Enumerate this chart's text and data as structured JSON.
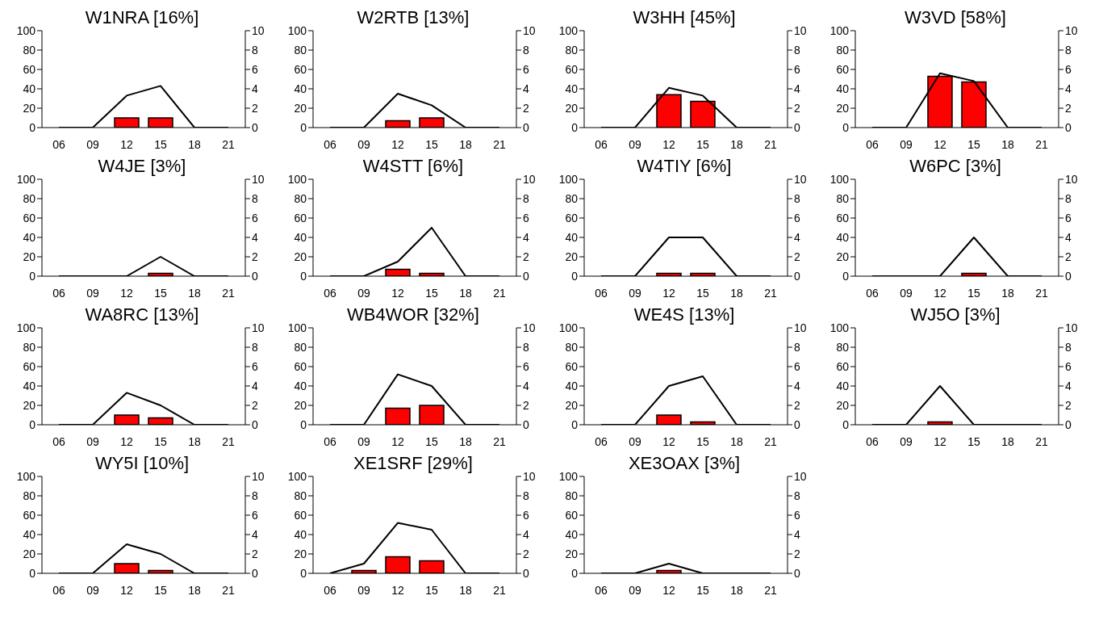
{
  "chart_data": [
    {
      "type": "bar",
      "title": "W1NRA [16%]",
      "categories": [
        "06",
        "09",
        "12",
        "15",
        "18",
        "21"
      ],
      "ylim": [
        0,
        100
      ],
      "yticks": [
        0,
        20,
        40,
        60,
        80,
        100
      ],
      "y2lim": [
        0,
        10
      ],
      "y2ticks": [
        0,
        2,
        4,
        6,
        8,
        10
      ],
      "series": [
        {
          "color": "#ff0000",
          "values": [
            0,
            0,
            10,
            10,
            0,
            0
          ]
        },
        {
          "type": "line",
          "axis": "y2",
          "color": "#000000",
          "values": [
            0,
            0,
            3.3,
            4.3,
            0,
            0
          ]
        }
      ]
    },
    {
      "type": "bar",
      "title": "W2RTB [13%]",
      "categories": [
        "06",
        "09",
        "12",
        "15",
        "18",
        "21"
      ],
      "ylim": [
        0,
        100
      ],
      "yticks": [
        0,
        20,
        40,
        60,
        80,
        100
      ],
      "y2lim": [
        0,
        10
      ],
      "y2ticks": [
        0,
        2,
        4,
        6,
        8,
        10
      ],
      "series": [
        {
          "color": "#ff0000",
          "values": [
            0,
            0,
            7,
            10,
            0,
            0
          ]
        },
        {
          "type": "line",
          "axis": "y2",
          "color": "#000000",
          "values": [
            0,
            0,
            3.5,
            2.3,
            0,
            0
          ]
        }
      ]
    },
    {
      "type": "bar",
      "title": "W3HH [45%]",
      "categories": [
        "06",
        "09",
        "12",
        "15",
        "18",
        "21"
      ],
      "ylim": [
        0,
        100
      ],
      "yticks": [
        0,
        20,
        40,
        60,
        80,
        100
      ],
      "y2lim": [
        0,
        10
      ],
      "y2ticks": [
        0,
        2,
        4,
        6,
        8,
        10
      ],
      "series": [
        {
          "color": "#ff0000",
          "values": [
            0,
            0,
            34,
            27,
            0,
            0
          ]
        },
        {
          "type": "line",
          "axis": "y2",
          "color": "#000000",
          "values": [
            0,
            0,
            4.1,
            3.3,
            0,
            0
          ]
        }
      ]
    },
    {
      "type": "bar",
      "title": "W3VD [58%]",
      "categories": [
        "06",
        "09",
        "12",
        "15",
        "18",
        "21"
      ],
      "ylim": [
        0,
        100
      ],
      "yticks": [
        0,
        20,
        40,
        60,
        80,
        100
      ],
      "y2lim": [
        0,
        10
      ],
      "y2ticks": [
        0,
        2,
        4,
        6,
        8,
        10
      ],
      "series": [
        {
          "color": "#ff0000",
          "values": [
            0,
            0,
            53,
            47,
            0,
            0
          ]
        },
        {
          "type": "line",
          "axis": "y2",
          "color": "#000000",
          "values": [
            0,
            0,
            5.6,
            4.8,
            0,
            0
          ]
        }
      ]
    },
    {
      "type": "bar",
      "title": "W4JE [3%]",
      "categories": [
        "06",
        "09",
        "12",
        "15",
        "18",
        "21"
      ],
      "ylim": [
        0,
        100
      ],
      "yticks": [
        0,
        20,
        40,
        60,
        80,
        100
      ],
      "y2lim": [
        0,
        10
      ],
      "y2ticks": [
        0,
        2,
        4,
        6,
        8,
        10
      ],
      "series": [
        {
          "color": "#ff0000",
          "values": [
            0,
            0,
            0,
            3,
            0,
            0
          ]
        },
        {
          "type": "line",
          "axis": "y2",
          "color": "#000000",
          "values": [
            0,
            0,
            0,
            2,
            0,
            0
          ]
        }
      ]
    },
    {
      "type": "bar",
      "title": "W4STT [6%]",
      "categories": [
        "06",
        "09",
        "12",
        "15",
        "18",
        "21"
      ],
      "ylim": [
        0,
        100
      ],
      "yticks": [
        0,
        20,
        40,
        60,
        80,
        100
      ],
      "y2lim": [
        0,
        10
      ],
      "y2ticks": [
        0,
        2,
        4,
        6,
        8,
        10
      ],
      "series": [
        {
          "color": "#ff0000",
          "values": [
            0,
            0,
            7,
            3,
            0,
            0
          ]
        },
        {
          "type": "line",
          "axis": "y2",
          "color": "#000000",
          "values": [
            0,
            0,
            1.5,
            5,
            0,
            0
          ]
        }
      ]
    },
    {
      "type": "bar",
      "title": "W4TIY [6%]",
      "categories": [
        "06",
        "09",
        "12",
        "15",
        "18",
        "21"
      ],
      "ylim": [
        0,
        100
      ],
      "yticks": [
        0,
        20,
        40,
        60,
        80,
        100
      ],
      "y2lim": [
        0,
        10
      ],
      "y2ticks": [
        0,
        2,
        4,
        6,
        8,
        10
      ],
      "series": [
        {
          "color": "#ff0000",
          "values": [
            0,
            0,
            3,
            3,
            0,
            0
          ]
        },
        {
          "type": "line",
          "axis": "y2",
          "color": "#000000",
          "values": [
            0,
            0,
            4,
            4,
            0,
            0
          ]
        }
      ]
    },
    {
      "type": "bar",
      "title": "W6PC [3%]",
      "categories": [
        "06",
        "09",
        "12",
        "15",
        "18",
        "21"
      ],
      "ylim": [
        0,
        100
      ],
      "yticks": [
        0,
        20,
        40,
        60,
        80,
        100
      ],
      "y2lim": [
        0,
        10
      ],
      "y2ticks": [
        0,
        2,
        4,
        6,
        8,
        10
      ],
      "series": [
        {
          "color": "#ff0000",
          "values": [
            0,
            0,
            0,
            3,
            0,
            0
          ]
        },
        {
          "type": "line",
          "axis": "y2",
          "color": "#000000",
          "values": [
            0,
            0,
            0,
            4,
            0,
            0
          ]
        }
      ]
    },
    {
      "type": "bar",
      "title": "WA8RC [13%]",
      "categories": [
        "06",
        "09",
        "12",
        "15",
        "18",
        "21"
      ],
      "ylim": [
        0,
        100
      ],
      "yticks": [
        0,
        20,
        40,
        60,
        80,
        100
      ],
      "y2lim": [
        0,
        10
      ],
      "y2ticks": [
        0,
        2,
        4,
        6,
        8,
        10
      ],
      "series": [
        {
          "color": "#ff0000",
          "values": [
            0,
            0,
            10,
            7,
            0,
            0
          ]
        },
        {
          "type": "line",
          "axis": "y2",
          "color": "#000000",
          "values": [
            0,
            0,
            3.3,
            2,
            0,
            0
          ]
        }
      ]
    },
    {
      "type": "bar",
      "title": "WB4WOR [32%]",
      "categories": [
        "06",
        "09",
        "12",
        "15",
        "18",
        "21"
      ],
      "ylim": [
        0,
        100
      ],
      "yticks": [
        0,
        20,
        40,
        60,
        80,
        100
      ],
      "y2lim": [
        0,
        10
      ],
      "y2ticks": [
        0,
        2,
        4,
        6,
        8,
        10
      ],
      "series": [
        {
          "color": "#ff0000",
          "values": [
            0,
            0,
            17,
            20,
            0,
            0
          ]
        },
        {
          "type": "line",
          "axis": "y2",
          "color": "#000000",
          "values": [
            0,
            0,
            5.2,
            4,
            0,
            0
          ]
        }
      ]
    },
    {
      "type": "bar",
      "title": "WE4S [13%]",
      "categories": [
        "06",
        "09",
        "12",
        "15",
        "18",
        "21"
      ],
      "ylim": [
        0,
        100
      ],
      "yticks": [
        0,
        20,
        40,
        60,
        80,
        100
      ],
      "y2lim": [
        0,
        10
      ],
      "y2ticks": [
        0,
        2,
        4,
        6,
        8,
        10
      ],
      "series": [
        {
          "color": "#ff0000",
          "values": [
            0,
            0,
            10,
            3,
            0,
            0
          ]
        },
        {
          "type": "line",
          "axis": "y2",
          "color": "#000000",
          "values": [
            0,
            0,
            4,
            5,
            0,
            0
          ]
        }
      ]
    },
    {
      "type": "bar",
      "title": "WJ5O [3%]",
      "categories": [
        "06",
        "09",
        "12",
        "15",
        "18",
        "21"
      ],
      "ylim": [
        0,
        100
      ],
      "yticks": [
        0,
        20,
        40,
        60,
        80,
        100
      ],
      "y2lim": [
        0,
        10
      ],
      "y2ticks": [
        0,
        2,
        4,
        6,
        8,
        10
      ],
      "series": [
        {
          "color": "#ff0000",
          "values": [
            0,
            0,
            3,
            0,
            0,
            0
          ]
        },
        {
          "type": "line",
          "axis": "y2",
          "color": "#000000",
          "values": [
            0,
            0,
            4,
            0,
            0,
            0
          ]
        }
      ]
    },
    {
      "type": "bar",
      "title": "WY5I [10%]",
      "categories": [
        "06",
        "09",
        "12",
        "15",
        "18",
        "21"
      ],
      "ylim": [
        0,
        100
      ],
      "yticks": [
        0,
        20,
        40,
        60,
        80,
        100
      ],
      "y2lim": [
        0,
        10
      ],
      "y2ticks": [
        0,
        2,
        4,
        6,
        8,
        10
      ],
      "series": [
        {
          "color": "#ff0000",
          "values": [
            0,
            0,
            10,
            3,
            0,
            0
          ]
        },
        {
          "type": "line",
          "axis": "y2",
          "color": "#000000",
          "values": [
            0,
            0,
            3,
            2,
            0,
            0
          ]
        }
      ]
    },
    {
      "type": "bar",
      "title": "XE1SRF [29%]",
      "categories": [
        "06",
        "09",
        "12",
        "15",
        "18",
        "21"
      ],
      "ylim": [
        0,
        100
      ],
      "yticks": [
        0,
        20,
        40,
        60,
        80,
        100
      ],
      "y2lim": [
        0,
        10
      ],
      "y2ticks": [
        0,
        2,
        4,
        6,
        8,
        10
      ],
      "series": [
        {
          "color": "#ff0000",
          "values": [
            0,
            3,
            17,
            13,
            0,
            0
          ]
        },
        {
          "type": "line",
          "axis": "y2",
          "color": "#000000",
          "values": [
            0,
            1,
            5.2,
            4.5,
            0,
            0
          ]
        }
      ]
    },
    {
      "type": "bar",
      "title": "XE3OAX [3%]",
      "categories": [
        "06",
        "09",
        "12",
        "15",
        "18",
        "21"
      ],
      "ylim": [
        0,
        100
      ],
      "yticks": [
        0,
        20,
        40,
        60,
        80,
        100
      ],
      "y2lim": [
        0,
        10
      ],
      "y2ticks": [
        0,
        2,
        4,
        6,
        8,
        10
      ],
      "series": [
        {
          "color": "#ff0000",
          "values": [
            0,
            0,
            3,
            0,
            0,
            0
          ]
        },
        {
          "type": "line",
          "axis": "y2",
          "color": "#000000",
          "values": [
            0,
            0,
            1,
            0,
            0,
            0
          ]
        }
      ]
    }
  ]
}
